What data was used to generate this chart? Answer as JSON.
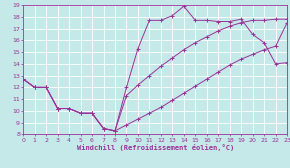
{
  "xlabel": "Windchill (Refroidissement éolien,°C)",
  "xlim": [
    0,
    23
  ],
  "ylim": [
    8,
    19
  ],
  "xticks": [
    0,
    1,
    2,
    3,
    4,
    5,
    6,
    7,
    8,
    9,
    10,
    11,
    12,
    13,
    14,
    15,
    16,
    17,
    18,
    19,
    20,
    21,
    22,
    23
  ],
  "yticks": [
    8,
    9,
    10,
    11,
    12,
    13,
    14,
    15,
    16,
    17,
    18,
    19
  ],
  "bg_color": "#c5e8e8",
  "grid_color": "#ffffff",
  "line_color": "#993399",
  "lines": [
    {
      "x": [
        0,
        1,
        2,
        3,
        4,
        5,
        6,
        7,
        8,
        9,
        10,
        11,
        12,
        13,
        14,
        15,
        16,
        17,
        18,
        19,
        20,
        21,
        22,
        23
      ],
      "y": [
        12.7,
        12.0,
        12.0,
        10.2,
        10.2,
        9.8,
        9.8,
        8.5,
        8.3,
        12.0,
        15.3,
        17.7,
        17.7,
        18.1,
        18.9,
        17.7,
        17.7,
        17.6,
        17.6,
        17.8,
        16.5,
        15.8,
        14.0,
        14.1
      ]
    },
    {
      "x": [
        0,
        1,
        2,
        3,
        4,
        5,
        6,
        7,
        8,
        9,
        10,
        11,
        12,
        13,
        14,
        15,
        16,
        17,
        18,
        19,
        20,
        21,
        22,
        23
      ],
      "y": [
        12.7,
        12.0,
        12.0,
        10.2,
        10.2,
        9.8,
        9.8,
        8.5,
        8.3,
        11.3,
        12.2,
        13.0,
        13.8,
        14.5,
        15.2,
        15.8,
        16.3,
        16.8,
        17.2,
        17.5,
        17.7,
        17.7,
        17.8,
        17.8
      ]
    },
    {
      "x": [
        0,
        1,
        2,
        3,
        4,
        5,
        6,
        7,
        8,
        9,
        10,
        11,
        12,
        13,
        14,
        15,
        16,
        17,
        18,
        19,
        20,
        21,
        22,
        23
      ],
      "y": [
        12.7,
        12.0,
        12.0,
        10.2,
        10.2,
        9.8,
        9.8,
        8.5,
        8.3,
        8.8,
        9.3,
        9.8,
        10.3,
        10.9,
        11.5,
        12.1,
        12.7,
        13.3,
        13.9,
        14.4,
        14.8,
        15.2,
        15.5,
        17.5
      ]
    }
  ]
}
